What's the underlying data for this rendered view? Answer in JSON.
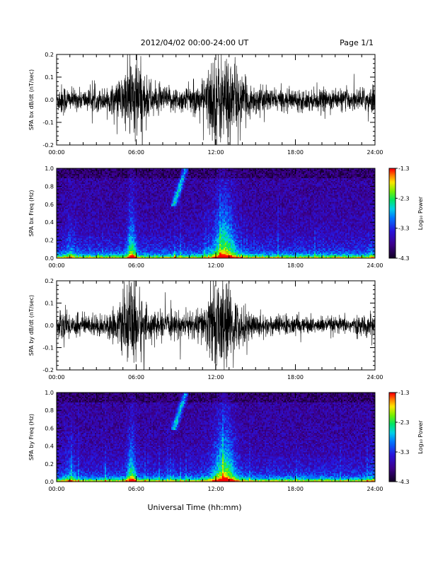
{
  "header": {
    "date_range": "2012/04/02  00:00-24:00 UT",
    "page": "Page 1/1"
  },
  "footer": {
    "xlabel": "Universal Time (hh:mm)"
  },
  "chart_data": [
    {
      "type": "line",
      "ylabel": "SPA bx dB/dt (nT/sec)",
      "xlim": [
        0,
        24
      ],
      "ylim": [
        -0.2,
        0.2
      ],
      "yticks": [
        "0.2",
        "0.1",
        "0.0",
        "-0.1",
        "-0.2"
      ],
      "xticks": [
        "00:00",
        "06:00",
        "12:00",
        "18:00",
        "24:00"
      ],
      "envelope": {
        "t_hours": [
          0,
          0.5,
          1,
          2,
          3,
          4,
          4.5,
          5,
          5.5,
          5.8,
          6.2,
          6.8,
          7.5,
          8.5,
          9.5,
          10.5,
          11.2,
          11.6,
          12,
          12.4,
          12.8,
          13.2,
          13.8,
          14.5,
          15.5,
          16.5,
          17.5,
          18.5,
          19.5,
          20.5,
          21.5,
          22.5,
          23.5,
          24
        ],
        "amplitude": [
          0.06,
          0.08,
          0.05,
          0.05,
          0.05,
          0.06,
          0.08,
          0.12,
          0.2,
          0.22,
          0.2,
          0.1,
          0.07,
          0.06,
          0.06,
          0.07,
          0.1,
          0.2,
          0.22,
          0.22,
          0.22,
          0.2,
          0.12,
          0.08,
          0.06,
          0.05,
          0.05,
          0.05,
          0.05,
          0.05,
          0.05,
          0.05,
          0.06,
          0.08
        ]
      }
    },
    {
      "type": "heatmap",
      "ylabel": "SPA bx Freq (Hz)",
      "xlim": [
        0,
        24
      ],
      "ylim": [
        0,
        1.0
      ],
      "yticks": [
        "1.0",
        "0.8",
        "0.6",
        "0.4",
        "0.2",
        "0.0"
      ],
      "xticks": [
        "00:00",
        "06:00",
        "12:00",
        "18:00",
        "24:00"
      ],
      "colorbar": {
        "label": "Log₁₀ Power",
        "range": [
          -4.3,
          -1.3
        ],
        "ticks": [
          "-1.3",
          "-2.3",
          "-3.3",
          "-4.3"
        ]
      }
    },
    {
      "type": "line",
      "ylabel": "SPA by dB/dt (nT/sec)",
      "xlim": [
        0,
        24
      ],
      "ylim": [
        -0.2,
        0.2
      ],
      "yticks": [
        "0.2",
        "0.1",
        "0.0",
        "-0.1",
        "-0.2"
      ],
      "xticks": [
        "00:00",
        "06:00",
        "12:00",
        "18:00",
        "24:00"
      ],
      "envelope": {
        "t_hours": [
          0,
          0.5,
          1,
          2,
          3,
          4,
          4.5,
          5,
          5.5,
          5.8,
          6.2,
          6.8,
          7.5,
          8.5,
          9.5,
          10.5,
          11.2,
          11.6,
          12,
          12.4,
          12.8,
          13.2,
          13.8,
          14.5,
          15.5,
          16.5,
          17.5,
          18.5,
          19.5,
          20.5,
          21.5,
          22.5,
          23.5,
          24
        ],
        "amplitude": [
          0.05,
          0.08,
          0.06,
          0.05,
          0.05,
          0.06,
          0.08,
          0.12,
          0.2,
          0.22,
          0.18,
          0.08,
          0.06,
          0.06,
          0.06,
          0.07,
          0.1,
          0.17,
          0.22,
          0.22,
          0.2,
          0.16,
          0.1,
          0.07,
          0.05,
          0.05,
          0.05,
          0.04,
          0.04,
          0.04,
          0.04,
          0.04,
          0.05,
          0.06
        ]
      }
    },
    {
      "type": "heatmap",
      "ylabel": "SPA by Freq (Hz)",
      "xlim": [
        0,
        24
      ],
      "ylim": [
        0,
        1.0
      ],
      "yticks": [
        "1.0",
        "0.8",
        "0.6",
        "0.4",
        "0.2",
        "0.0"
      ],
      "xticks": [
        "00:00",
        "06:00",
        "12:00",
        "18:00",
        "24:00"
      ],
      "colorbar": {
        "label": "Log₁₀ Power",
        "range": [
          -4.3,
          -1.3
        ],
        "ticks": [
          "-1.3",
          "-2.3",
          "-3.3",
          "-4.3"
        ]
      }
    }
  ]
}
